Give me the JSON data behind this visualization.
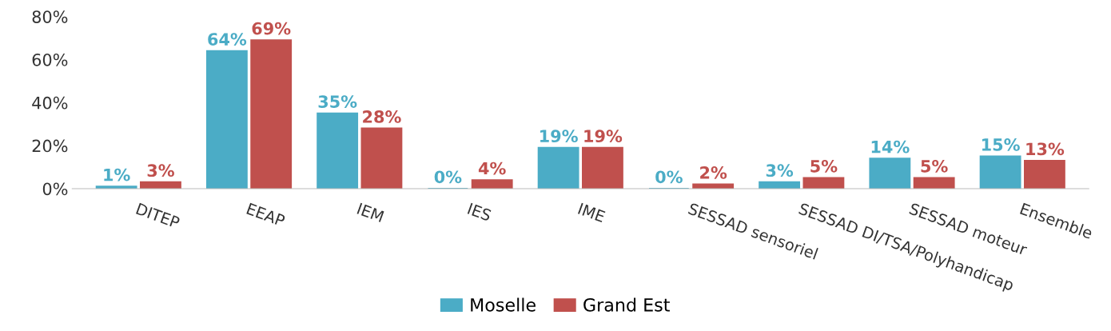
{
  "chart_data": {
    "type": "bar",
    "categories": [
      "DITEP",
      "EEAP",
      "IEM",
      "IES",
      "IME",
      "SESSAD sensoriel",
      "SESSAD DI/TSA/Polyhandicap",
      "SESSAD moteur",
      "Ensemble"
    ],
    "series": [
      {
        "name": "Moselle",
        "color": "#4bacc6",
        "values": [
          1,
          64,
          35,
          0,
          19,
          0,
          3,
          14,
          15
        ],
        "value_labels": [
          "1%",
          "64%",
          "35%",
          "0%",
          "19%",
          "0%",
          "3%",
          "14%",
          "15%"
        ]
      },
      {
        "name": "Grand Est",
        "color": "#c0504d",
        "values": [
          3,
          69,
          28,
          4,
          19,
          2,
          5,
          5,
          13
        ],
        "value_labels": [
          "3%",
          "69%",
          "28%",
          "4%",
          "19%",
          "2%",
          "5%",
          "5%",
          "13%"
        ]
      }
    ],
    "ylim": [
      0,
      80
    ],
    "yticks": [
      {
        "value": 0,
        "label": "0%"
      },
      {
        "value": 20,
        "label": "20%"
      },
      {
        "value": 40,
        "label": "40%"
      },
      {
        "value": 60,
        "label": "60%"
      },
      {
        "value": 80,
        "label": "80%"
      }
    ],
    "grid": false,
    "legend": "bottom"
  }
}
